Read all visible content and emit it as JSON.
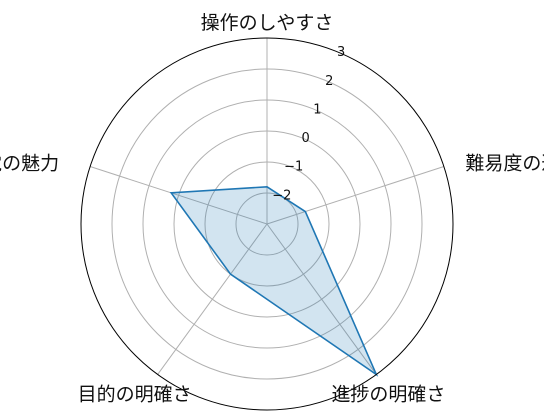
{
  "chart_data": {
    "type": "radar",
    "axes": [
      "操作のしやすさ",
      "難易度の適切さ",
      "進捗の明確さ",
      "目的の明確さ",
      "視聴覚の魅力"
    ],
    "series": [
      {
        "values": [
          -1.8,
          -1.7,
          3.0,
          -1.0,
          0.25
        ]
      }
    ],
    "rlim": [
      -3,
      3
    ],
    "rticks": [
      -2,
      -1,
      0,
      1,
      2,
      3
    ],
    "rtick_labels": [
      "−2",
      "−1",
      "0",
      "1",
      "2",
      "3"
    ],
    "grid": true,
    "colors": {
      "line": "#1f77b4",
      "fill": "#1f77b4",
      "grid": "#b0b0b0",
      "frame": "#000000"
    }
  }
}
